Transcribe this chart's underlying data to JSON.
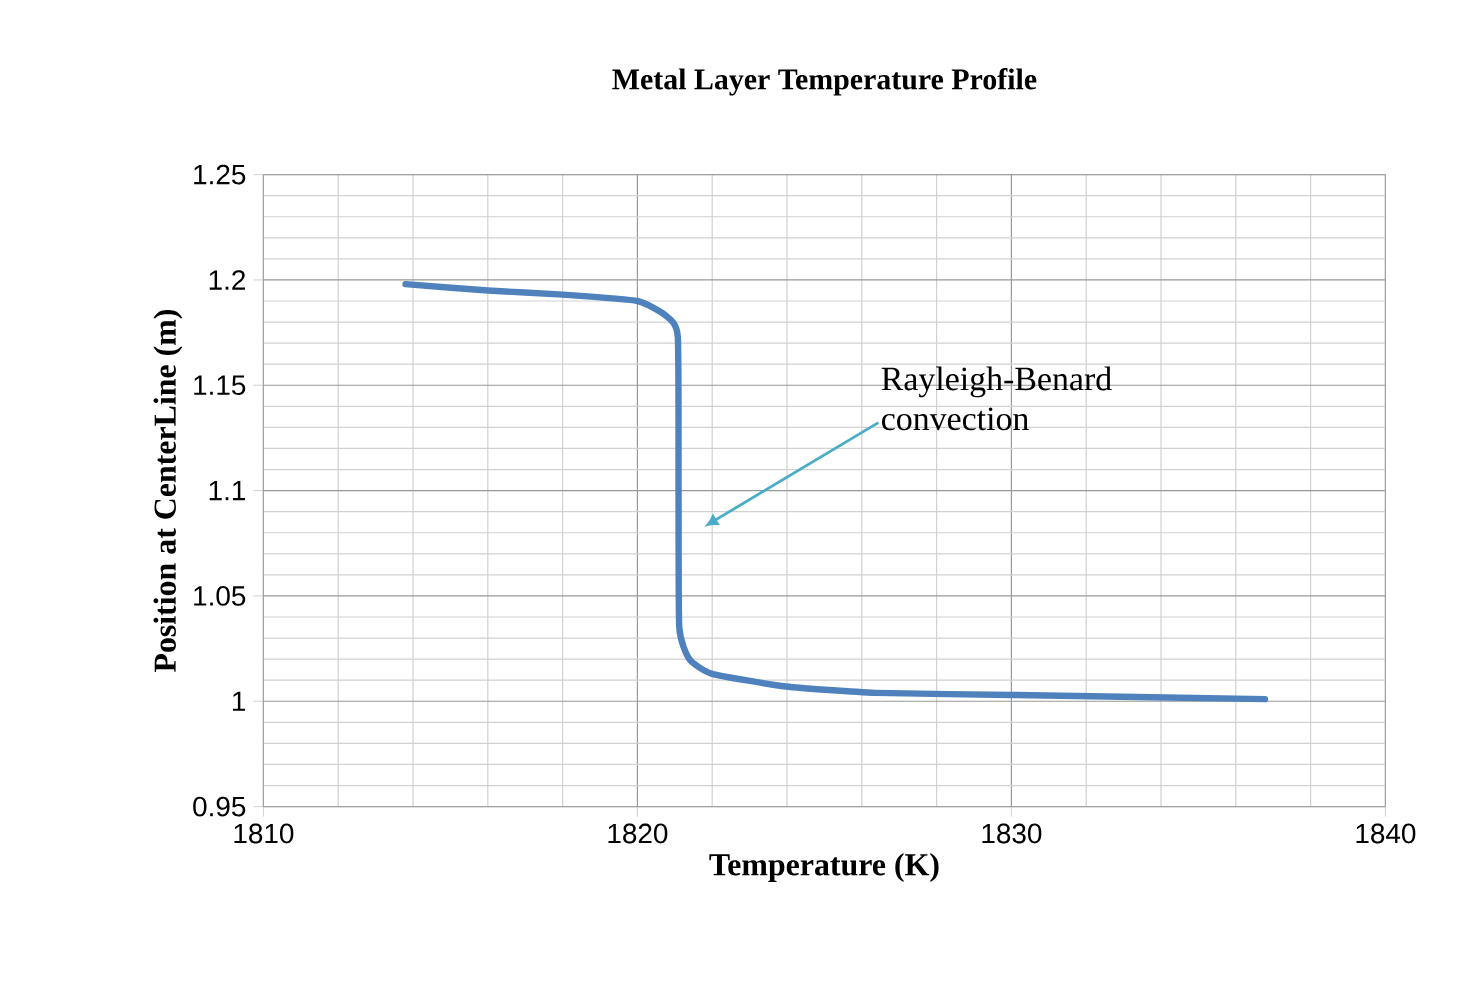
{
  "chart_data": {
    "type": "line",
    "title": "Metal Layer Temperature Profile",
    "xlabel": "Temperature (K)",
    "ylabel": "Position at CenterLine (m)",
    "xlim": [
      1810,
      1840
    ],
    "xticks": [
      1810,
      1820,
      1830,
      1840
    ],
    "ylim": [
      0.95,
      1.25
    ],
    "yticks": [
      0.95,
      1,
      1.05,
      1.1,
      1.15,
      1.2,
      1.25
    ],
    "grid": true,
    "series": [
      {
        "color": "#4f81bd",
        "x": [
          1813.8,
          1816.0,
          1818.0,
          1820.0,
          1820.76,
          1821.08,
          1821.1,
          1821.12,
          1821.39,
          1822.0,
          1823.97,
          1826.37,
          1830.02,
          1836.78
        ],
        "values": [
          1.198,
          1.195,
          1.193,
          1.19,
          1.183,
          1.173,
          1.1,
          1.035,
          1.02,
          1.013,
          1.007,
          1.004,
          1.003,
          1.001
        ]
      }
    ],
    "annotations": [
      "Rayleigh-Benard convection"
    ]
  }
}
